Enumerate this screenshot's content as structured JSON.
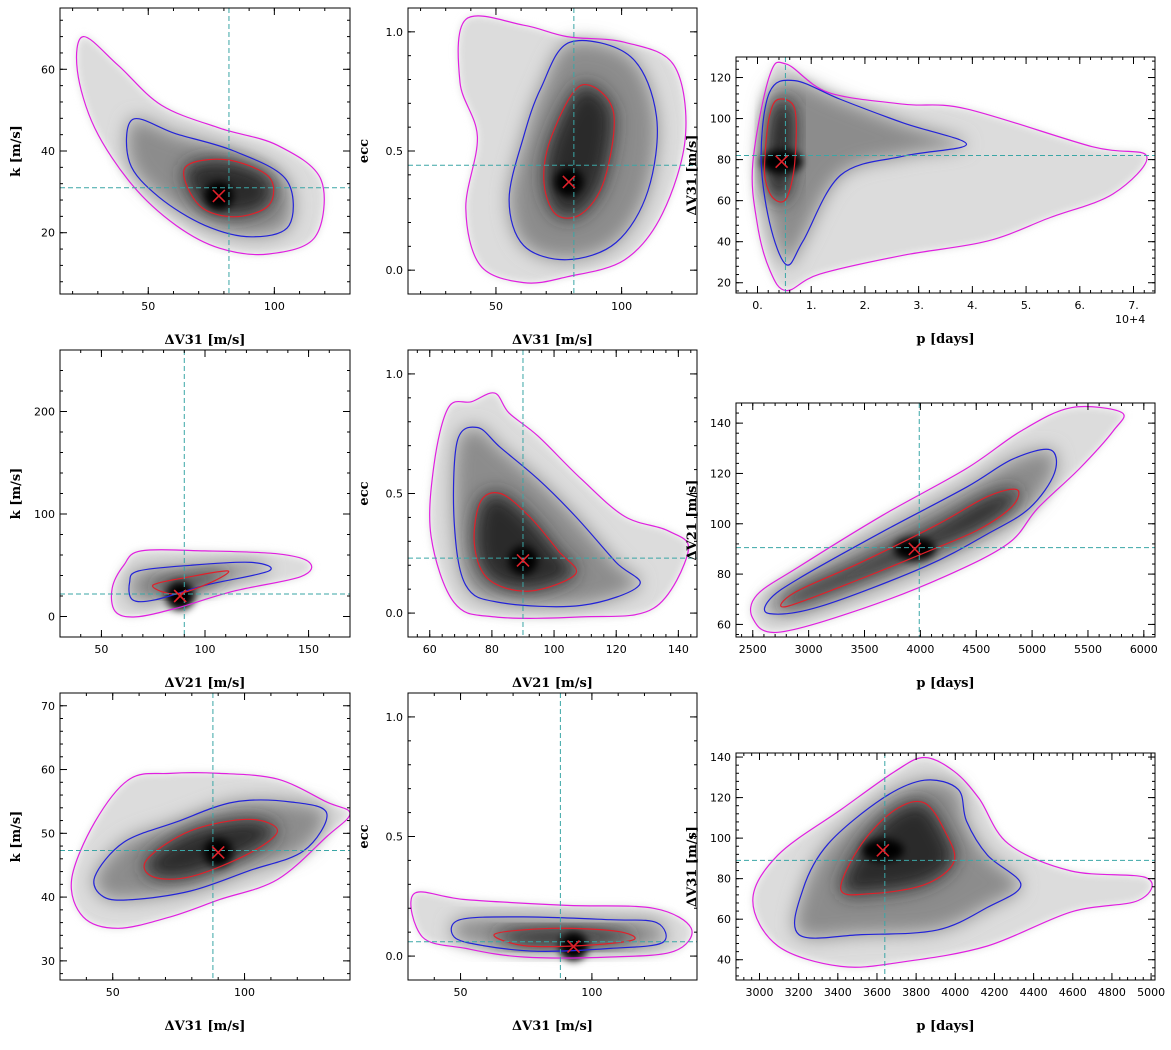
{
  "colors": {
    "contour_inner": "#e0202a",
    "contour_mid": "#2323d8",
    "contour_outer": "#e020e0",
    "guide": "#3aa6a6",
    "marker": "#e0202a"
  },
  "chart_data": [
    {
      "type": "heatmap",
      "xlabel": "ΔV31 [m/s]",
      "ylabel": "k [m/s]",
      "xlim": [
        15,
        130
      ],
      "ylim": [
        5,
        75
      ],
      "xticks": [
        50,
        100
      ],
      "yticks": [
        20,
        40,
        60
      ],
      "peak": [
        78,
        29
      ],
      "guide": [
        82,
        31
      ],
      "axes": {
        "x0": 60,
        "x1": 350,
        "y0": 8,
        "y1": 294
      }
    },
    {
      "type": "heatmap",
      "xlabel": "ΔV31 [m/s]",
      "ylabel": "ecc",
      "xlim": [
        15,
        130
      ],
      "ylim": [
        -0.1,
        1.1
      ],
      "xticks": [
        50,
        100
      ],
      "yticks": [
        0.0,
        0.5,
        1.0
      ],
      "peak": [
        79,
        0.37
      ],
      "guide": [
        81,
        0.44
      ],
      "axes": {
        "x0": 408,
        "x1": 697,
        "y0": 8,
        "y1": 294
      }
    },
    {
      "type": "heatmap",
      "xlabel": "p [days]",
      "ylabel": "ΔV31 [m/s]",
      "xlim": [
        -4000,
        74000
      ],
      "ylim": [
        15,
        130
      ],
      "xticks": [
        0,
        10000,
        20000,
        30000,
        40000,
        50000,
        60000,
        70000
      ],
      "xtick_labels": [
        "0.",
        "1.",
        "2.",
        "3.",
        "4.",
        "5.",
        "6.",
        "7."
      ],
      "x_multiplier": "10+4",
      "yticks": [
        20,
        40,
        60,
        80,
        100,
        120
      ],
      "peak": [
        4500,
        79
      ],
      "guide": [
        5200,
        82
      ],
      "axes": {
        "x0": 736,
        "x1": 1155,
        "y0": 57,
        "y1": 293
      }
    },
    {
      "type": "heatmap",
      "xlabel": "ΔV21 [m/s]",
      "ylabel": "k [m/s]",
      "xlim": [
        30,
        170
      ],
      "ylim": [
        -20,
        260
      ],
      "xticks": [
        50,
        100,
        150
      ],
      "yticks": [
        0,
        100,
        200
      ],
      "peak": [
        88,
        20
      ],
      "guide": [
        90,
        22
      ],
      "axes": {
        "x0": 60,
        "x1": 350,
        "y0": 350,
        "y1": 637
      }
    },
    {
      "type": "heatmap",
      "xlabel": "ΔV21 [m/s]",
      "ylabel": "ecc",
      "xlim": [
        53,
        146
      ],
      "ylim": [
        -0.1,
        1.1
      ],
      "xticks": [
        60,
        80,
        100,
        120,
        140
      ],
      "yticks": [
        0.0,
        0.5,
        1.0
      ],
      "peak": [
        90,
        0.22
      ],
      "guide": [
        90,
        0.23
      ],
      "axes": {
        "x0": 408,
        "x1": 697,
        "y0": 350,
        "y1": 637
      }
    },
    {
      "type": "heatmap",
      "xlabel": "p [days]",
      "ylabel": "ΔV21 [m/s]",
      "xlim": [
        2350,
        6100
      ],
      "ylim": [
        55,
        148
      ],
      "xticks": [
        2500,
        3000,
        3500,
        4000,
        4500,
        5000,
        5500,
        6000
      ],
      "yticks": [
        60,
        80,
        100,
        120,
        140
      ],
      "peak": [
        3950,
        90
      ],
      "guide": [
        3990,
        90.5
      ],
      "axes": {
        "x0": 736,
        "x1": 1155,
        "y0": 403,
        "y1": 637
      }
    },
    {
      "type": "heatmap",
      "xlabel": "ΔV31 [m/s]",
      "ylabel": "k [m/s]",
      "xlim": [
        30,
        140
      ],
      "ylim": [
        27,
        72
      ],
      "xticks": [
        50,
        100
      ],
      "yticks": [
        30,
        40,
        50,
        60,
        70
      ],
      "peak": [
        90,
        47
      ],
      "guide": [
        88,
        47.3
      ],
      "axes": {
        "x0": 60,
        "x1": 350,
        "y0": 693,
        "y1": 980
      }
    },
    {
      "type": "heatmap",
      "xlabel": "ΔV31 [m/s]",
      "ylabel": "ecc",
      "xlim": [
        30,
        140
      ],
      "ylim": [
        -0.1,
        1.1
      ],
      "xticks": [
        50,
        100
      ],
      "yticks": [
        0.0,
        0.5,
        1.0
      ],
      "peak": [
        93,
        0.04
      ],
      "guide": [
        88,
        0.06
      ],
      "axes": {
        "x0": 408,
        "x1": 697,
        "y0": 693,
        "y1": 980
      }
    },
    {
      "type": "heatmap",
      "xlabel": "p [days]",
      "ylabel": "ΔV31 [m/s]",
      "xlim": [
        2880,
        5020
      ],
      "ylim": [
        30,
        142
      ],
      "xticks": [
        3000,
        3200,
        3400,
        3600,
        3800,
        4000,
        4200,
        4400,
        4600,
        4800,
        5000
      ],
      "yticks": [
        40,
        60,
        80,
        100,
        120,
        140
      ],
      "peak": [
        3630,
        94
      ],
      "guide": [
        3640,
        89
      ],
      "axes": {
        "x0": 736,
        "x1": 1155,
        "y0": 753,
        "y1": 980
      }
    }
  ]
}
